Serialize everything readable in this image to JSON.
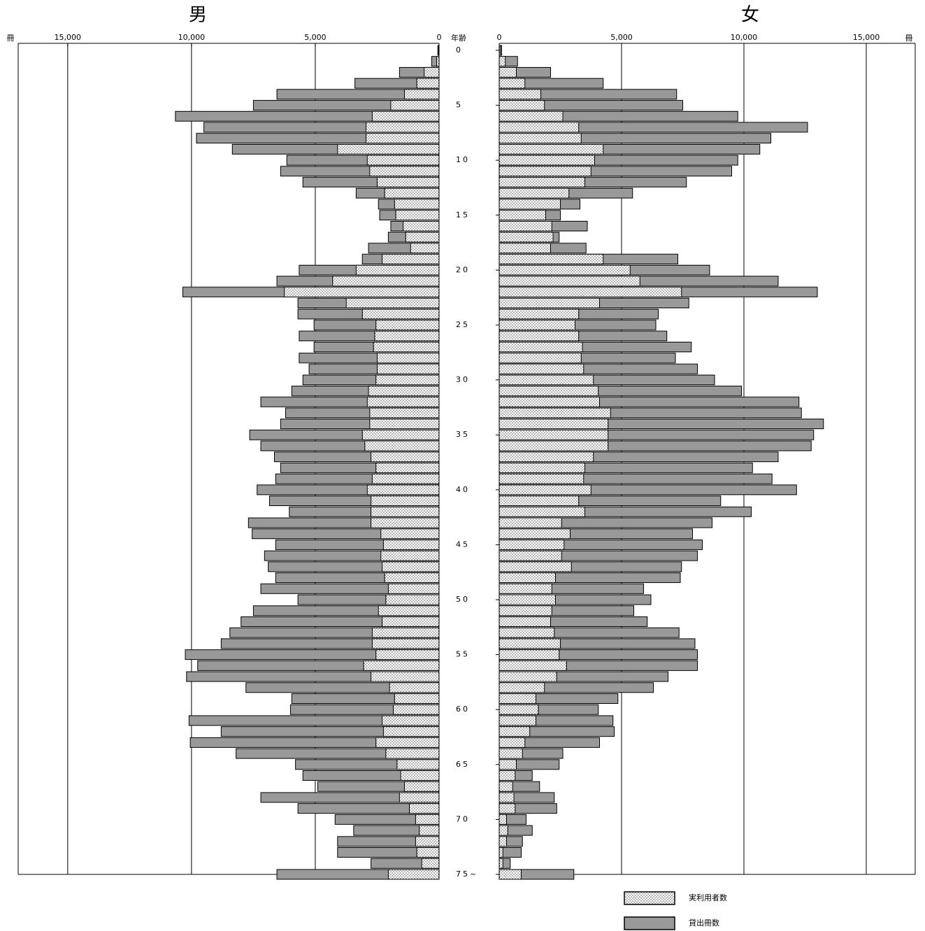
{
  "chart_data": {
    "type": "pyramid",
    "y_label": "年齢",
    "x_unit": "冊",
    "categories": [
      "0",
      null,
      null,
      null,
      null,
      "5",
      null,
      null,
      null,
      null,
      "10",
      null,
      null,
      null,
      null,
      "15",
      null,
      null,
      null,
      null,
      "20",
      null,
      null,
      null,
      null,
      "25",
      null,
      null,
      null,
      null,
      "30",
      null,
      null,
      null,
      null,
      "35",
      null,
      null,
      null,
      null,
      "40",
      null,
      null,
      null,
      null,
      "45",
      null,
      null,
      null,
      null,
      "50",
      null,
      null,
      null,
      null,
      "55",
      null,
      null,
      null,
      null,
      "60",
      null,
      null,
      null,
      null,
      "65",
      null,
      null,
      null,
      null,
      "70",
      null,
      null,
      null,
      null,
      "75~"
    ],
    "xlim": [
      0,
      17000
    ],
    "xticks": [
      0,
      {
        "value": 5000,
        "label": "5,000"
      },
      {
        "value": 10000,
        "label": "10,000"
      },
      {
        "value": 15000,
        "label": "15,000"
      }
    ],
    "grid": true,
    "panels": [
      {
        "title": "男",
        "series": [
          {
            "name": "実利用者数",
            "color": "#ffffff",
            "values": [
              20,
              100,
              600,
              900,
              1400,
              1950,
              2700,
              2950,
              2950,
              4100,
              2900,
              2800,
              2500,
              2200,
              1800,
              1750,
              1450,
              1350,
              1150,
              2300,
              3350,
              4300,
              6250,
              3750,
              3100,
              2550,
              2600,
              2650,
              2500,
              2500,
              2550,
              2850,
              2900,
              2800,
              2800,
              3100,
              3000,
              2750,
              2550,
              2700,
              2900,
              2750,
              2750,
              2750,
              2350,
              2250,
              2350,
              2300,
              2200,
              2050,
              2150,
              2450,
              2300,
              2700,
              2700,
              2550,
              3050,
              2750,
              2000,
              1800,
              1850,
              2300,
              2250,
              2550,
              2150,
              1700,
              1550,
              1400,
              1600,
              1200,
              950,
              800,
              950,
              900,
              700,
              2050
            ]
          },
          {
            "name": "貸出冊数",
            "color": "#999999",
            "values": [
              50,
              300,
              1600,
              3400,
              6550,
              7500,
              10650,
              9500,
              9800,
              8350,
              6150,
              6400,
              5500,
              3350,
              2450,
              2400,
              1950,
              2050,
              2850,
              3100,
              5650,
              6550,
              10350,
              5700,
              5700,
              5050,
              5650,
              5050,
              5650,
              5250,
              5500,
              5950,
              7200,
              6200,
              6400,
              7650,
              7200,
              6650,
              6400,
              6600,
              7350,
              6850,
              6050,
              7700,
              7550,
              6600,
              7050,
              6900,
              6600,
              7200,
              5700,
              7500,
              8000,
              8450,
              8800,
              10250,
              9750,
              10200,
              7800,
              5950,
              6000,
              10100,
              8800,
              10050,
              8200,
              5800,
              5500,
              4900,
              7200,
              5700,
              4200,
              3450,
              4100,
              4100,
              2750,
              6550
            ]
          }
        ]
      },
      {
        "title": "女",
        "series": [
          {
            "name": "実利用者数",
            "color": "#ffffff",
            "values": [
              50,
              250,
              700,
              1050,
              1700,
              1850,
              2600,
              3250,
              3350,
              4250,
              3900,
              3750,
              3500,
              2850,
              2500,
              1900,
              2150,
              2200,
              2100,
              4250,
              5350,
              5750,
              7450,
              4100,
              3250,
              3100,
              3250,
              3400,
              3350,
              3450,
              3850,
              4050,
              4100,
              4550,
              4450,
              4450,
              4450,
              3850,
              3500,
              3450,
              3750,
              3250,
              3500,
              2550,
              2900,
              2650,
              2550,
              2950,
              2300,
              2150,
              2300,
              2150,
              2100,
              2250,
              2500,
              2450,
              2750,
              2350,
              1850,
              1500,
              1600,
              1500,
              1250,
              1050,
              950,
              700,
              650,
              550,
              600,
              650,
              300,
              350,
              300,
              150,
              150,
              900
            ]
          },
          {
            "name": "貸出冊数",
            "color": "#999999",
            "values": [
              100,
              750,
              2100,
              4250,
              7250,
              7500,
              9750,
              12600,
              11100,
              10650,
              9750,
              9500,
              7650,
              5450,
              3300,
              2500,
              3600,
              2450,
              3550,
              7300,
              8600,
              11400,
              13000,
              7750,
              6500,
              6400,
              6850,
              7850,
              7200,
              8100,
              8800,
              9900,
              12250,
              12350,
              13250,
              12850,
              12750,
              11400,
              10350,
              11150,
              12150,
              9050,
              10300,
              8700,
              7900,
              8300,
              8100,
              7450,
              7400,
              5900,
              6200,
              5500,
              6050,
              7350,
              8000,
              8100,
              8100,
              6900,
              6300,
              4850,
              4050,
              4650,
              4700,
              4100,
              2600,
              2450,
              1350,
              1650,
              2250,
              2350,
              1100,
              1350,
              950,
              900,
              450,
              3050
            ]
          }
        ]
      }
    ]
  }
}
